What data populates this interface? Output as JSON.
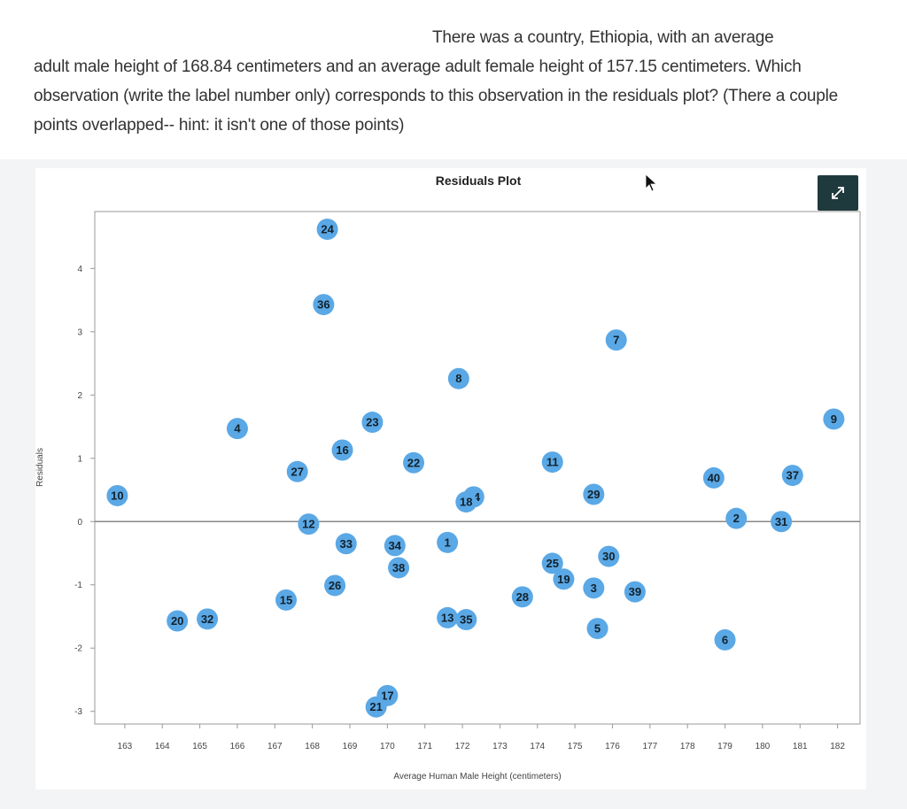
{
  "question": {
    "line1": "There was a country, Ethiopia, with an average",
    "rest": "adult male height of 168.84 centimeters and an average adult female height of 157.15 centimeters. Which observation (write the label number only) corresponds to this observation in the residuals plot? (There a couple points overlapped-- hint: it isn't one of those points)"
  },
  "expand_icon": "expand-arrows-icon",
  "colors": {
    "point": "#5aa8e6",
    "label": "#13212b",
    "zero_line": "#888888",
    "button": "#1f3a3d"
  },
  "chart_data": {
    "type": "scatter",
    "title": "Residuals Plot",
    "xlabel": "Average Human Male Height (centimeters)",
    "ylabel": "Residuals",
    "xlim": [
      162.2,
      182.6
    ],
    "ylim": [
      -3.2,
      4.9
    ],
    "x_ticks": [
      163,
      164,
      165,
      166,
      167,
      168,
      169,
      170,
      171,
      172,
      173,
      174,
      175,
      176,
      177,
      178,
      179,
      180,
      181,
      182
    ],
    "y_ticks": [
      -3,
      -2,
      -1,
      0,
      1,
      2,
      3,
      4
    ],
    "reference_line_y": 0,
    "grid": false,
    "points": [
      {
        "label": "1",
        "x": 171.6,
        "y": -0.33
      },
      {
        "label": "2",
        "x": 179.3,
        "y": 0.05
      },
      {
        "label": "3",
        "x": 175.5,
        "y": -1.05
      },
      {
        "label": "4",
        "x": 166.0,
        "y": 1.47
      },
      {
        "label": "5",
        "x": 175.6,
        "y": -1.69
      },
      {
        "label": "6",
        "x": 179.0,
        "y": -1.87
      },
      {
        "label": "7",
        "x": 176.1,
        "y": 2.87
      },
      {
        "label": "8",
        "x": 171.9,
        "y": 2.26
      },
      {
        "label": "9",
        "x": 181.9,
        "y": 1.62
      },
      {
        "label": "10",
        "x": 162.8,
        "y": 0.41
      },
      {
        "label": "11",
        "x": 174.4,
        "y": 0.94
      },
      {
        "label": "12",
        "x": 167.9,
        "y": -0.04
      },
      {
        "label": "13",
        "x": 171.6,
        "y": -1.52
      },
      {
        "label": "14",
        "x": 172.3,
        "y": 0.39
      },
      {
        "label": "15",
        "x": 167.3,
        "y": -1.24
      },
      {
        "label": "16",
        "x": 168.8,
        "y": 1.13
      },
      {
        "label": "17",
        "x": 170.0,
        "y": -2.75
      },
      {
        "label": "18",
        "x": 172.1,
        "y": 0.31
      },
      {
        "label": "19",
        "x": 174.7,
        "y": -0.91
      },
      {
        "label": "20",
        "x": 164.4,
        "y": -1.57
      },
      {
        "label": "21",
        "x": 169.7,
        "y": -2.93
      },
      {
        "label": "22",
        "x": 170.7,
        "y": 0.93
      },
      {
        "label": "23",
        "x": 169.6,
        "y": 1.57
      },
      {
        "label": "24",
        "x": 168.4,
        "y": 4.62
      },
      {
        "label": "25",
        "x": 174.4,
        "y": -0.66
      },
      {
        "label": "26",
        "x": 168.6,
        "y": -1.01
      },
      {
        "label": "27",
        "x": 167.6,
        "y": 0.79
      },
      {
        "label": "28",
        "x": 173.6,
        "y": -1.19
      },
      {
        "label": "29",
        "x": 175.5,
        "y": 0.43
      },
      {
        "label": "30",
        "x": 175.9,
        "y": -0.55
      },
      {
        "label": "31",
        "x": 180.5,
        "y": 0.0
      },
      {
        "label": "32",
        "x": 165.2,
        "y": -1.54
      },
      {
        "label": "33",
        "x": 168.9,
        "y": -0.35
      },
      {
        "label": "34",
        "x": 170.2,
        "y": -0.38
      },
      {
        "label": "35",
        "x": 172.1,
        "y": -1.55
      },
      {
        "label": "36",
        "x": 168.3,
        "y": 3.43
      },
      {
        "label": "37",
        "x": 180.8,
        "y": 0.73
      },
      {
        "label": "38",
        "x": 170.3,
        "y": -0.73
      },
      {
        "label": "39",
        "x": 176.6,
        "y": -1.11
      },
      {
        "label": "40",
        "x": 178.7,
        "y": 0.69
      }
    ]
  }
}
